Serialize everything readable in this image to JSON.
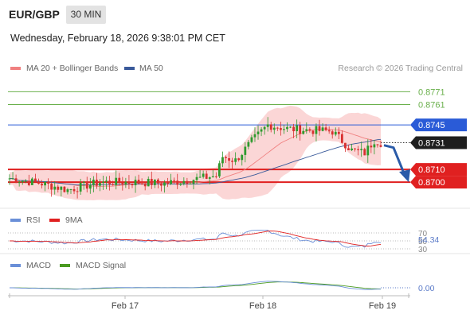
{
  "header": {
    "symbol": "EUR/GBP",
    "timeframe": "30 MIN",
    "datetime": "Wednesday, February 18, 2026 9:38:01 PM CET",
    "credit": "Research © 2026 Trading Central"
  },
  "legend": {
    "ma20": {
      "label": "MA 20 + Bollinger Bands",
      "color": "#f08080"
    },
    "ma50": {
      "label": "MA 50",
      "color": "#3a5a9a"
    },
    "rsi": {
      "label": "RSI",
      "color": "#6a8fd8"
    },
    "ma9": {
      "label": "9MA",
      "color": "#e02020"
    },
    "macd": {
      "label": "MACD",
      "color": "#6a8fd8"
    },
    "macd_signal": {
      "label": "MACD Signal",
      "color": "#4a9a20"
    }
  },
  "colors": {
    "up": "#2e9a2e",
    "down": "#d83030",
    "resistance": "#6ab04c",
    "pivot": "#2a5bd7",
    "support": "#e02020",
    "arrow": "#2a5ba8"
  },
  "chart_data": [
    {
      "type": "candlestick",
      "panel": "price",
      "x_ticks": [
        "Feb 17",
        "Feb 18",
        "Feb 19"
      ],
      "ylim": [
        0.8682,
        0.8785
      ],
      "current_price": 0.8731,
      "levels": [
        {
          "value": 0.8771,
          "label": "0.8771",
          "kind": "resistance"
        },
        {
          "value": 0.8761,
          "label": "0.8761",
          "kind": "resistance"
        },
        {
          "value": 0.8745,
          "label": "0.8745",
          "kind": "pivot"
        },
        {
          "value": 0.871,
          "label": "0.8710",
          "kind": "support"
        },
        {
          "value": 0.87,
          "label": "0.8700",
          "kind": "support"
        }
      ],
      "current_label": "0.8731",
      "forecast": {
        "direction": "down",
        "from": 0.8729,
        "to": 0.87
      }
    },
    {
      "type": "line",
      "panel": "rsi",
      "title": "RSI",
      "series": [
        "RSI",
        "9MA"
      ],
      "ylim": [
        30,
        70
      ],
      "tick_labels": [
        "70",
        "50",
        "30"
      ],
      "current": "54.34"
    },
    {
      "type": "line",
      "panel": "macd",
      "title": "MACD",
      "series": [
        "MACD",
        "MACD Signal"
      ],
      "current": "0.00"
    }
  ]
}
